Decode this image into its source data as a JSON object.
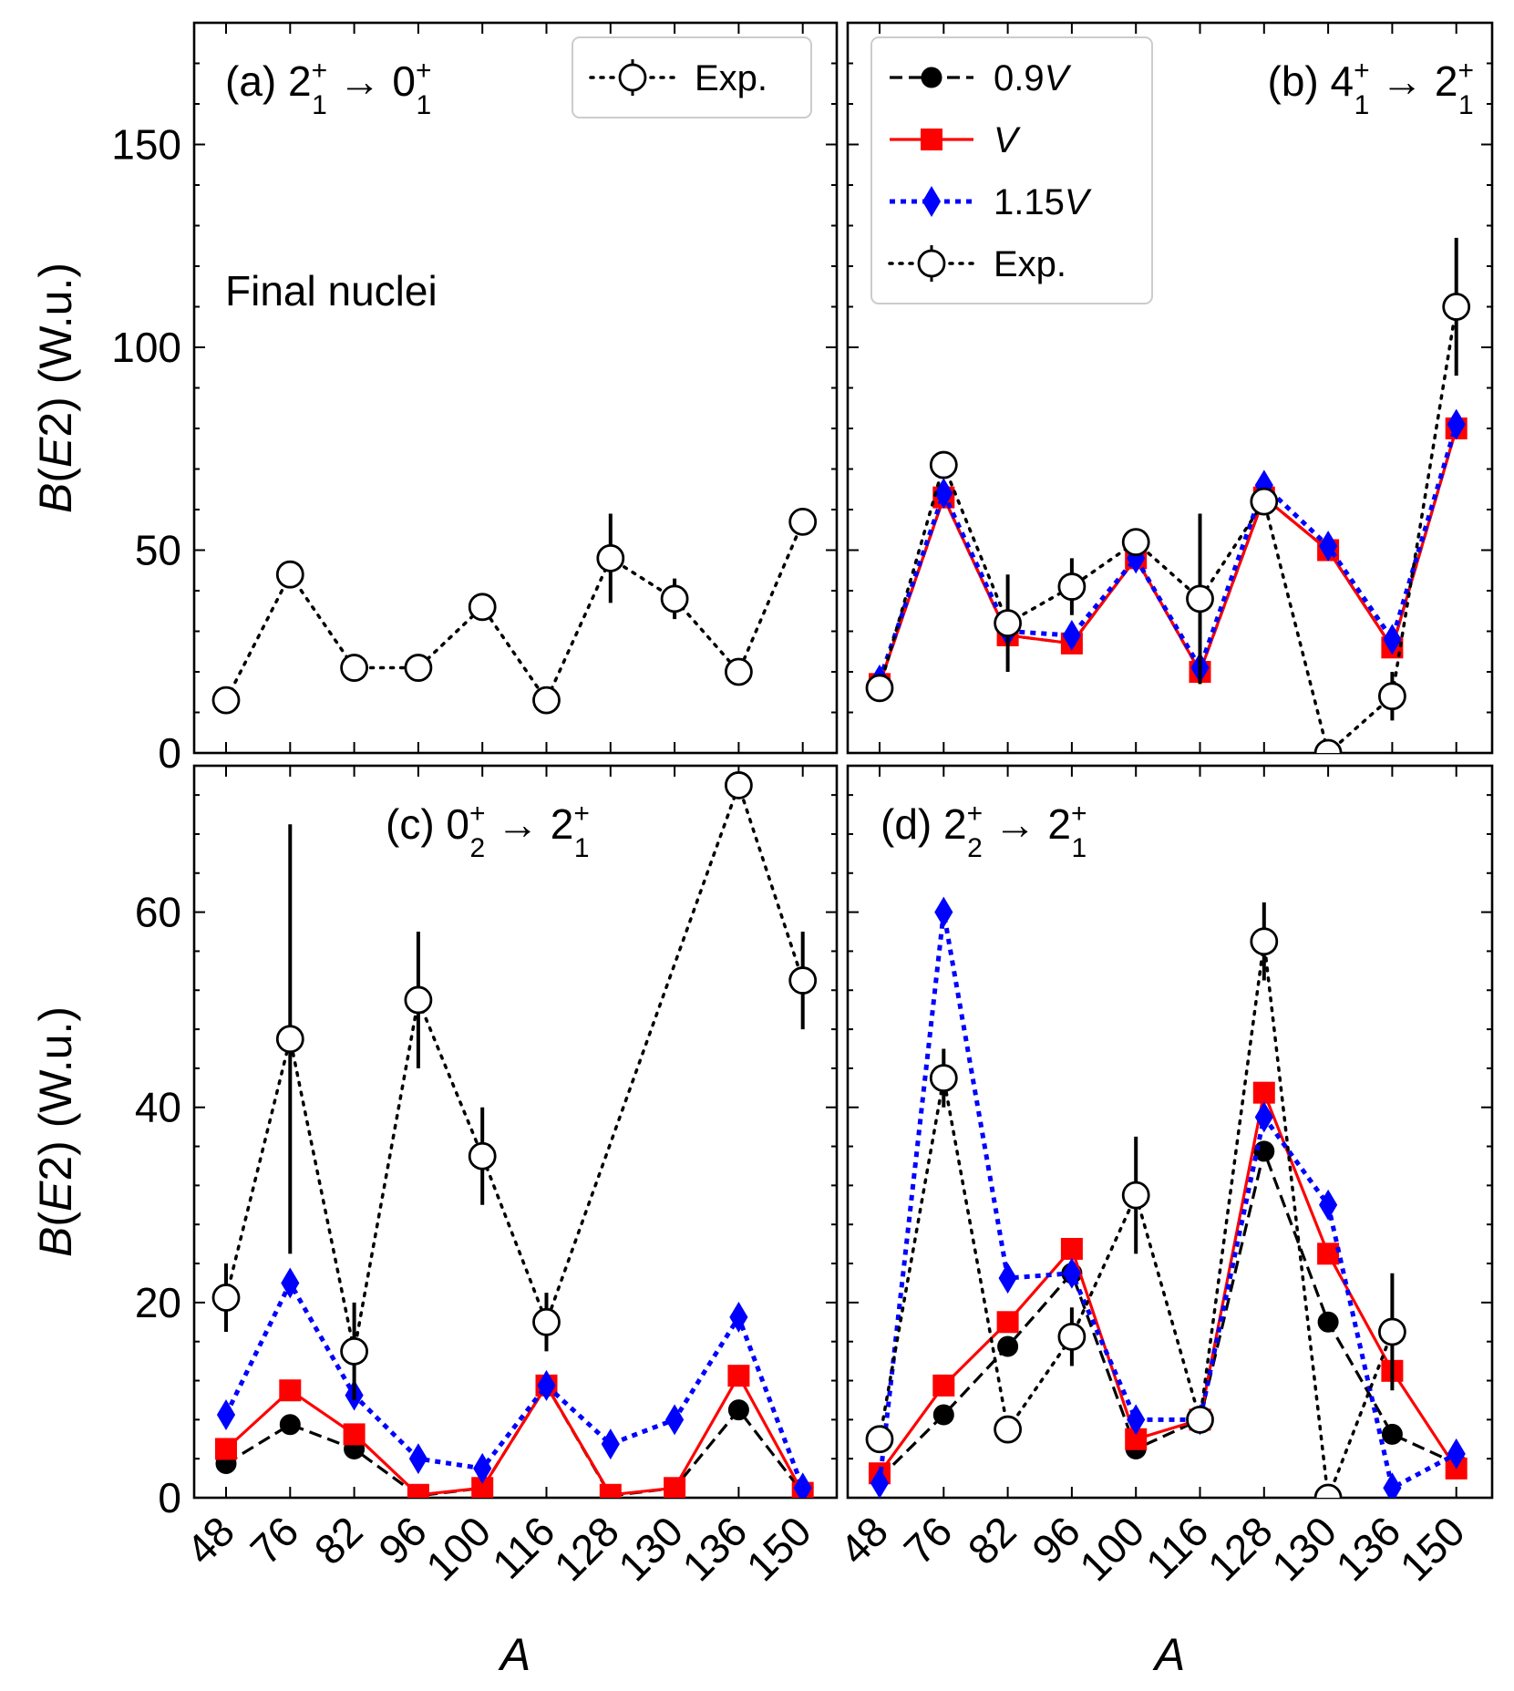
{
  "chart_data": [
    {
      "panel": "a",
      "type": "line",
      "label_prefix": "(a)",
      "transition": {
        "from": "2",
        "from_sub": "1",
        "to": "0",
        "to_sub": "1",
        "sup": "+",
        "arrow": "→"
      },
      "categories": [
        "48",
        "76",
        "82",
        "96",
        "100",
        "116",
        "128",
        "130",
        "136",
        "150"
      ],
      "ylim": [
        0,
        180
      ],
      "yticks": [
        0,
        50,
        100,
        150
      ],
      "ylabel": "B(E2) (W.u.)",
      "annotation": "Final nuclei",
      "legend": {
        "position": "top-right",
        "entries": [
          "Exp."
        ]
      },
      "series": [
        {
          "name": "Exp.",
          "key": "exp",
          "values": [
            13,
            44,
            21,
            21,
            36,
            13,
            48,
            38,
            20,
            57
          ],
          "errors": [
            null,
            null,
            null,
            null,
            null,
            null,
            11,
            5,
            null,
            null
          ]
        }
      ]
    },
    {
      "panel": "b",
      "type": "line",
      "label_prefix": "(b)",
      "transition": {
        "from": "4",
        "from_sub": "1",
        "to": "2",
        "to_sub": "1",
        "sup": "+",
        "arrow": "→"
      },
      "categories": [
        "48",
        "76",
        "82",
        "96",
        "100",
        "116",
        "128",
        "130",
        "136",
        "150"
      ],
      "ylim": [
        0,
        180
      ],
      "yticks": [
        0,
        50,
        100,
        150
      ],
      "legend": {
        "position": "top-left",
        "entries": [
          "0.9V",
          "V",
          "1.15V",
          "Exp."
        ]
      },
      "series": [
        {
          "name": "0.9V",
          "key": "s09",
          "values": [
            17,
            63,
            29,
            27,
            48,
            20,
            63,
            50,
            26,
            80
          ]
        },
        {
          "name": "V",
          "key": "s10",
          "values": [
            17,
            63,
            29,
            27,
            48,
            20,
            63,
            50,
            26,
            80
          ]
        },
        {
          "name": "1.15V",
          "key": "s115",
          "values": [
            18,
            64,
            30,
            29,
            48,
            21,
            66,
            51,
            28,
            81
          ]
        },
        {
          "name": "Exp.",
          "key": "exp",
          "values": [
            16,
            71,
            32,
            41,
            52,
            38,
            62,
            0,
            14,
            110
          ],
          "errors": [
            null,
            null,
            12,
            7,
            null,
            21,
            null,
            null,
            6,
            17
          ]
        }
      ]
    },
    {
      "panel": "c",
      "type": "line",
      "label_prefix": "(c)",
      "transition": {
        "from": "0",
        "from_sub": "2",
        "to": "2",
        "to_sub": "1",
        "sup": "+",
        "arrow": "→"
      },
      "categories": [
        "48",
        "76",
        "82",
        "96",
        "100",
        "116",
        "128",
        "130",
        "136",
        "150"
      ],
      "ylim": [
        0,
        75
      ],
      "yticks": [
        0,
        20,
        40,
        60
      ],
      "ylabel": "B(E2) (W.u.)",
      "xlabel": "A",
      "series": [
        {
          "name": "0.9V",
          "key": "s09",
          "values": [
            3.5,
            7.5,
            5,
            0.2,
            1,
            11.5,
            0.2,
            1,
            9,
            0.5
          ]
        },
        {
          "name": "V",
          "key": "s10",
          "values": [
            5,
            11,
            6.5,
            0.3,
            1,
            11.5,
            0.3,
            1,
            12.5,
            0.5
          ]
        },
        {
          "name": "1.15V",
          "key": "s115",
          "values": [
            8.5,
            22,
            10.5,
            4,
            3,
            11.5,
            5.5,
            8,
            18.5,
            1
          ]
        },
        {
          "name": "Exp.",
          "key": "exp",
          "values": [
            20.5,
            47,
            15,
            51,
            35,
            18,
            null,
            null,
            73,
            53
          ],
          "errors": [
            3.5,
            22,
            5,
            7,
            5,
            3,
            null,
            null,
            null,
            5
          ]
        }
      ]
    },
    {
      "panel": "d",
      "type": "line",
      "label_prefix": "(d)",
      "transition": {
        "from": "2",
        "from_sub": "2",
        "to": "2",
        "to_sub": "1",
        "sup": "+",
        "arrow": "→"
      },
      "categories": [
        "48",
        "76",
        "82",
        "96",
        "100",
        "116",
        "128",
        "130",
        "136",
        "150"
      ],
      "ylim": [
        0,
        75
      ],
      "yticks": [
        0,
        20,
        40,
        60
      ],
      "xlabel": "A",
      "series": [
        {
          "name": "0.9V",
          "key": "s09",
          "values": [
            2,
            8.5,
            15.5,
            23,
            5,
            8,
            35.5,
            18,
            6.5,
            3.5
          ]
        },
        {
          "name": "V",
          "key": "s10",
          "values": [
            2.5,
            11.5,
            18,
            25.5,
            6,
            8,
            41.5,
            25,
            13,
            3
          ]
        },
        {
          "name": "1.15V",
          "key": "s115",
          "values": [
            1.5,
            60,
            22.5,
            23,
            8,
            8,
            39,
            30,
            1,
            4.5
          ]
        },
        {
          "name": "Exp.",
          "key": "exp",
          "values": [
            6,
            43,
            7,
            16.5,
            31,
            8,
            57,
            0,
            17,
            null
          ],
          "errors": [
            null,
            3,
            null,
            3,
            6,
            null,
            4,
            null,
            6,
            null
          ]
        }
      ]
    }
  ],
  "colors": {
    "s09": "#000000",
    "s10": "#ff0000",
    "s115": "#0000ff",
    "exp": "#000000"
  }
}
